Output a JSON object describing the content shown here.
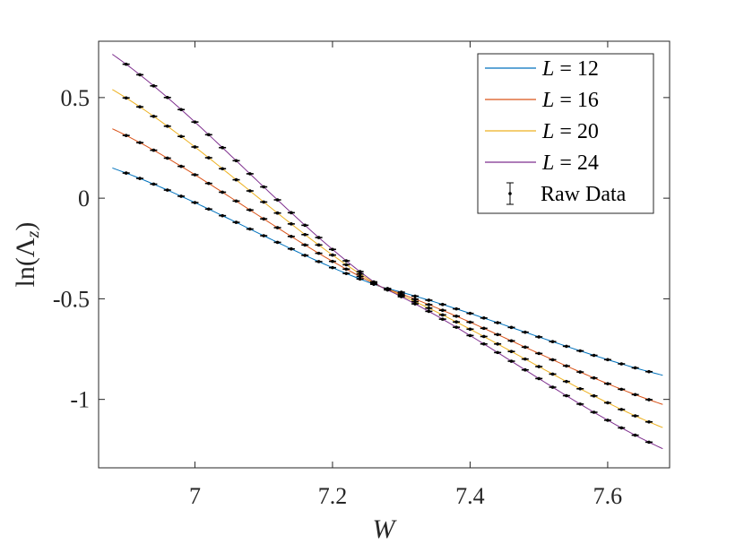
{
  "chart_data": {
    "type": "line",
    "title": "",
    "xlabel": "W",
    "ylabel": "ln(Λz)",
    "xlim": [
      6.86,
      7.69
    ],
    "ylim": [
      -1.34,
      0.78
    ],
    "xticks": [
      7,
      7.2,
      7.4,
      7.6
    ],
    "xtick_labels": [
      "7",
      "7.2",
      "7.4",
      "7.6"
    ],
    "yticks": [
      0.5,
      0,
      -0.5,
      -1
    ],
    "ytick_labels": [
      "0.5",
      "0",
      "-0.5",
      "-1"
    ],
    "grid": false,
    "legend_position": "top-right",
    "crossing_point": {
      "W": 7.27,
      "ln_lambda": -0.44
    },
    "x_range": [
      6.88,
      7.68
    ],
    "raw_data_x_range": [
      6.9,
      7.66
    ],
    "raw_data_step": 0.02,
    "raw_data_error": 0.006,
    "series": [
      {
        "name": "L = 12",
        "L_value": "12",
        "color": "#0072BD",
        "start": 0.15,
        "end": -0.88
      },
      {
        "name": "L = 16",
        "L_value": "16",
        "color": "#D95319",
        "start": 0.345,
        "end": -1.025
      },
      {
        "name": "L = 20",
        "L_value": "20",
        "color": "#EDB120",
        "start": 0.54,
        "end": -1.14
      },
      {
        "name": "L = 24",
        "L_value": "24",
        "color": "#7E2F8E",
        "start": 0.715,
        "end": -1.245
      }
    ],
    "raw_data_label": "Raw Data"
  }
}
